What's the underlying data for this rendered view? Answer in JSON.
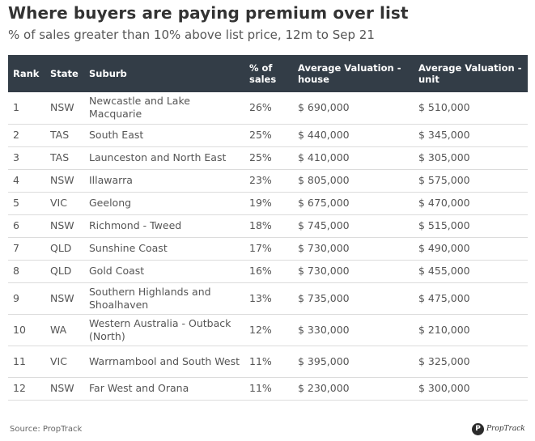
{
  "title": "Where buyers are paying premium over list",
  "subtitle": "% of sales greater than 10% above list price, 12m to Sep 21",
  "table": {
    "headers": {
      "rank": "Rank",
      "state": "State",
      "suburb": "Suburb",
      "pct": "% of sales",
      "house": "Average Valuation - house",
      "unit": "Average Valuation - unit"
    },
    "rows": [
      {
        "rank": "1",
        "state": "NSW",
        "suburb": "Newcastle and Lake Macquarie",
        "pct": "26%",
        "house": "$ 690,000",
        "unit": "$ 510,000"
      },
      {
        "rank": "2",
        "state": "TAS",
        "suburb": "South East",
        "pct": "25%",
        "house": "$ 440,000",
        "unit": "$ 345,000"
      },
      {
        "rank": "3",
        "state": "TAS",
        "suburb": "Launceston and North East",
        "pct": "25%",
        "house": "$ 410,000",
        "unit": "$ 305,000"
      },
      {
        "rank": "4",
        "state": "NSW",
        "suburb": "Illawarra",
        "pct": "23%",
        "house": "$ 805,000",
        "unit": "$ 575,000"
      },
      {
        "rank": "5",
        "state": "VIC",
        "suburb": "Geelong",
        "pct": "19%",
        "house": "$ 675,000",
        "unit": "$ 470,000"
      },
      {
        "rank": "6",
        "state": "NSW",
        "suburb": "Richmond - Tweed",
        "pct": "18%",
        "house": "$ 745,000",
        "unit": "$ 515,000"
      },
      {
        "rank": "7",
        "state": "QLD",
        "suburb": "Sunshine Coast",
        "pct": "17%",
        "house": "$ 730,000",
        "unit": "$ 490,000"
      },
      {
        "rank": "8",
        "state": "QLD",
        "suburb": "Gold Coast",
        "pct": "16%",
        "house": "$ 730,000",
        "unit": "$ 455,000"
      },
      {
        "rank": "9",
        "state": "NSW",
        "suburb": "Southern Highlands and Shoalhaven",
        "pct": "13%",
        "house": "$ 735,000",
        "unit": "$ 475,000"
      },
      {
        "rank": "10",
        "state": "WA",
        "suburb": "Western Australia - Outback (North)",
        "pct": "12%",
        "house": "$ 330,000",
        "unit": "$ 210,000"
      },
      {
        "rank": "11",
        "state": "VIC",
        "suburb": "Warrnambool and South West",
        "pct": "11%",
        "house": "$ 395,000",
        "unit": "$ 325,000"
      },
      {
        "rank": "12",
        "state": "NSW",
        "suburb": "Far West and Orana",
        "pct": "11%",
        "house": "$ 230,000",
        "unit": "$ 300,000"
      }
    ]
  },
  "source": "Source: PropTrack",
  "logo": {
    "text": "PropTrack",
    "icon": "proptrack-logo-icon"
  },
  "colors": {
    "header_bg": "#333d47",
    "header_text": "#ffffff",
    "row_divider": "#dcdcdc"
  }
}
